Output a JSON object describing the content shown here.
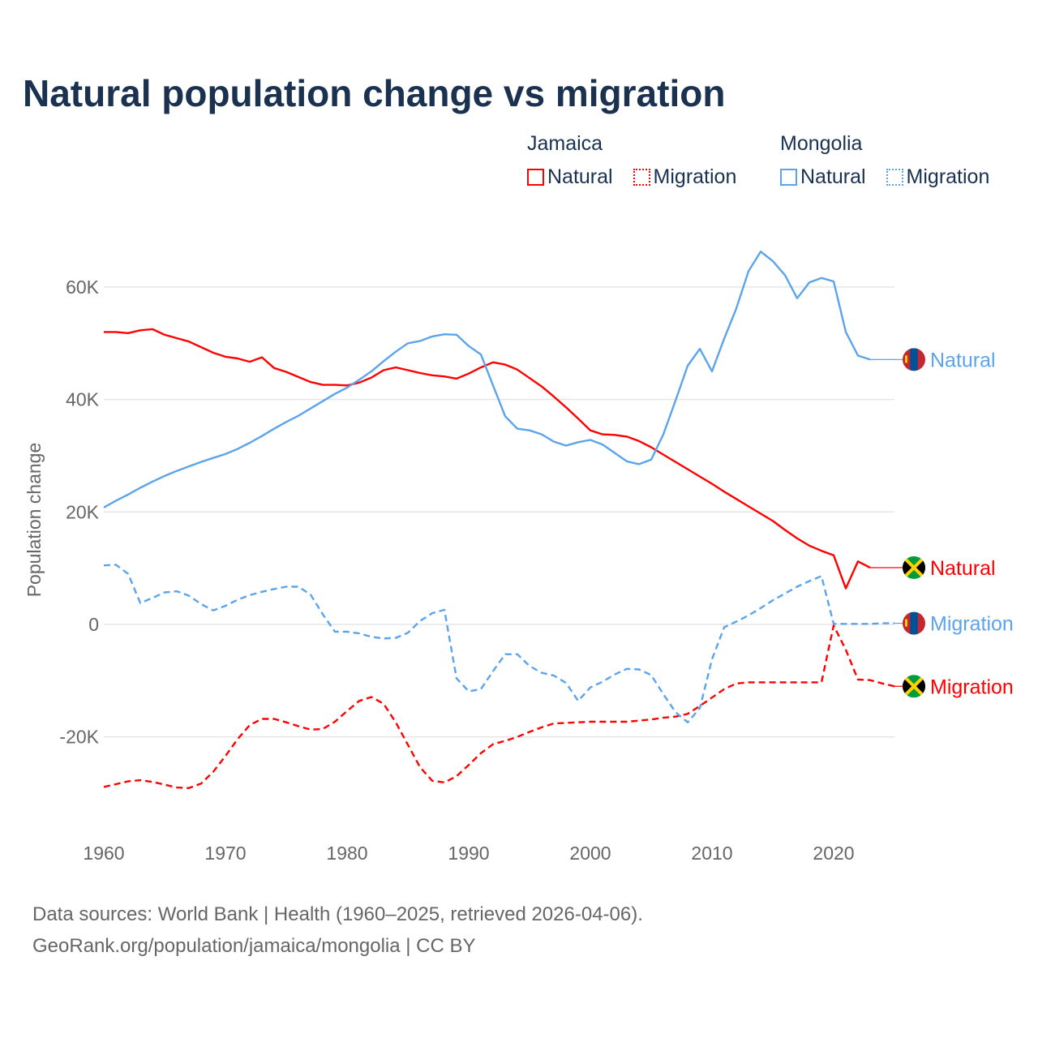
{
  "title": "Natural population change vs migration",
  "legend": {
    "groups": [
      {
        "name": "Jamaica",
        "items": [
          {
            "label": "Natural",
            "style": "solid"
          },
          {
            "label": "Migration",
            "style": "dotted"
          }
        ],
        "color": "#ff0000"
      },
      {
        "name": "Mongolia",
        "items": [
          {
            "label": "Natural",
            "style": "solid"
          },
          {
            "label": "Migration",
            "style": "dotted"
          }
        ],
        "color": "#5ba4ec"
      }
    ]
  },
  "footer": {
    "line1": "Data sources: World Bank | Health (1960–2025, retrieved 2026-04-06).",
    "line2": "GeoRank.org/population/jamaica/mongolia | CC BY"
  },
  "chart_data": {
    "type": "line",
    "title": "Natural population change vs migration",
    "xlabel": "",
    "ylabel": "Population change",
    "xlim": [
      1960,
      2025
    ],
    "ylim": [
      -30000,
      70000
    ],
    "x_ticks": [
      "1960",
      "1970",
      "1980",
      "1990",
      "2000",
      "2010",
      "2020"
    ],
    "y_ticks": [
      {
        "value": 60000,
        "label": "60K"
      },
      {
        "value": 40000,
        "label": "40K"
      },
      {
        "value": 20000,
        "label": "20K"
      },
      {
        "value": 0,
        "label": "0"
      },
      {
        "value": -20000,
        "label": "-20K"
      }
    ],
    "grid": true,
    "x_start": 1960,
    "series": [
      {
        "name": "Jamaica Natural",
        "end_label": "Natural",
        "flag": "jamaica",
        "color": "#ff0000",
        "dash": false,
        "values_k": [
          52.0,
          52.0,
          51.8,
          52.3,
          52.5,
          51.5,
          50.9,
          50.3,
          49.3,
          48.3,
          47.6,
          47.3,
          46.7,
          47.5,
          45.6,
          44.9,
          44.0,
          43.1,
          42.6,
          42.6,
          42.5,
          43.0,
          43.9,
          45.2,
          45.7,
          45.2,
          44.7,
          44.3,
          44.1,
          43.7,
          44.6,
          45.7,
          46.6,
          46.2,
          45.3,
          43.8,
          42.3,
          40.5,
          38.6,
          36.6,
          34.5,
          33.8,
          33.7,
          33.4,
          32.6,
          31.5,
          30.2,
          28.9,
          27.6,
          26.3,
          25.0,
          23.6,
          22.3,
          21.0,
          19.7,
          18.4,
          16.8,
          15.3,
          14.0,
          13.1,
          12.3,
          6.4,
          11.2,
          10.1,
          10.1,
          10.1
        ]
      },
      {
        "name": "Jamaica Migration",
        "end_label": "Migration",
        "flag": "jamaica",
        "color": "#ff0000",
        "dash": true,
        "values_k": [
          -28.9,
          -28.4,
          -27.9,
          -27.7,
          -28.0,
          -28.5,
          -29.0,
          -29.1,
          -28.3,
          -26.2,
          -23.4,
          -20.4,
          -17.9,
          -16.8,
          -16.8,
          -17.4,
          -18.1,
          -18.7,
          -18.6,
          -17.3,
          -15.4,
          -13.6,
          -12.9,
          -14.1,
          -17.4,
          -21.4,
          -25.4,
          -27.8,
          -28.1,
          -27.0,
          -25.0,
          -22.9,
          -21.3,
          -20.7,
          -20.0,
          -19.1,
          -18.3,
          -17.6,
          -17.5,
          -17.4,
          -17.3,
          -17.3,
          -17.3,
          -17.3,
          -17.1,
          -16.9,
          -16.6,
          -16.4,
          -15.9,
          -14.5,
          -13.0,
          -11.5,
          -10.5,
          -10.3,
          -10.3,
          -10.3,
          -10.3,
          -10.3,
          -10.3,
          -10.3,
          -0.2,
          -4.5,
          -9.8,
          -9.9,
          -10.5,
          -11.0
        ]
      },
      {
        "name": "Mongolia Natural",
        "end_label": "Natural",
        "flag": "mongolia",
        "color": "#5ba4ec",
        "dash": false,
        "values_k": [
          20.8,
          22.0,
          23.1,
          24.3,
          25.4,
          26.4,
          27.3,
          28.1,
          28.9,
          29.6,
          30.3,
          31.2,
          32.3,
          33.5,
          34.8,
          36.0,
          37.1,
          38.4,
          39.7,
          41.0,
          42.1,
          43.5,
          45.0,
          46.8,
          48.5,
          50.0,
          50.4,
          51.2,
          51.6,
          51.5,
          49.5,
          48.0,
          42.5,
          37.0,
          34.8,
          34.5,
          33.8,
          32.5,
          31.8,
          32.4,
          32.8,
          32.0,
          30.5,
          29.0,
          28.5,
          29.3,
          33.8,
          39.8,
          46.0,
          49.0,
          45.0,
          50.8,
          56.2,
          62.8,
          66.3,
          64.6,
          62.1,
          58.0,
          60.8,
          61.6,
          61.0,
          52.0,
          47.8,
          47.1,
          47.1,
          47.1
        ]
      },
      {
        "name": "Mongolia Migration",
        "end_label": "Migration",
        "flag": "mongolia",
        "color": "#5ba4ec",
        "dash": true,
        "values_k": [
          10.5,
          10.6,
          9.0,
          3.8,
          4.7,
          5.7,
          5.9,
          5.1,
          3.6,
          2.5,
          3.3,
          4.4,
          5.2,
          5.8,
          6.3,
          6.7,
          6.7,
          5.3,
          1.8,
          -1.3,
          -1.3,
          -1.6,
          -2.2,
          -2.5,
          -2.4,
          -1.5,
          0.6,
          2.0,
          2.6,
          -9.6,
          -11.9,
          -11.5,
          -8.3,
          -5.3,
          -5.3,
          -7.4,
          -8.6,
          -9.1,
          -10.4,
          -13.6,
          -11.2,
          -10.2,
          -8.9,
          -7.9,
          -8.0,
          -9.0,
          -12.4,
          -15.6,
          -17.4,
          -14.9,
          -6.2,
          -0.5,
          0.5,
          1.6,
          2.9,
          4.3,
          5.5,
          6.7,
          7.7,
          8.6,
          0.1,
          0.1,
          0.1,
          0.1,
          0.2,
          0.2
        ]
      }
    ]
  }
}
